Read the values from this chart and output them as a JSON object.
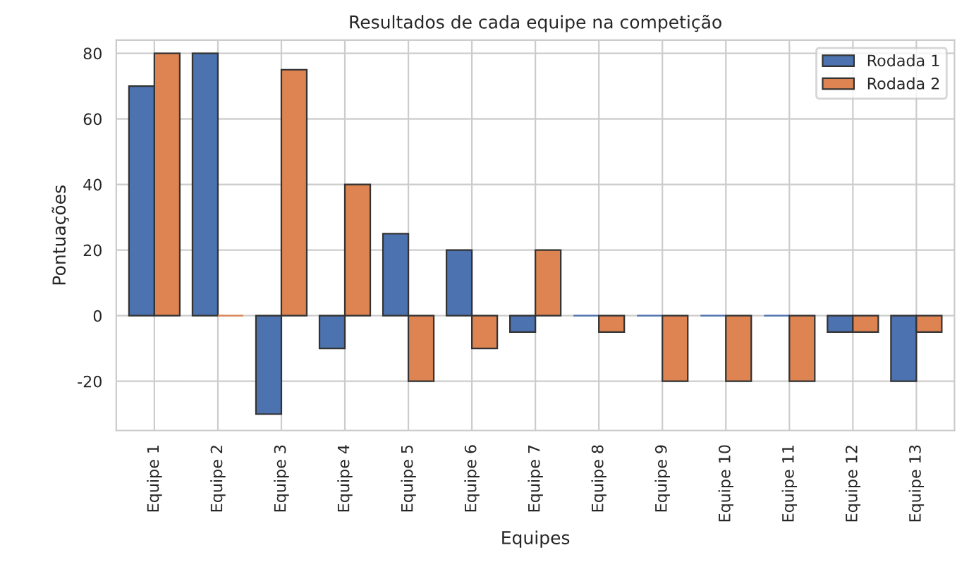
{
  "chart_data": {
    "type": "bar",
    "title": "Resultados de cada equipe na competição",
    "xlabel": "Equipes",
    "ylabel": "Pontuações",
    "categories": [
      "Equipe 1",
      "Equipe 2",
      "Equipe 3",
      "Equipe 4",
      "Equipe 5",
      "Equipe 6",
      "Equipe 7",
      "Equipe 8",
      "Equipe 9",
      "Equipe 10",
      "Equipe 11",
      "Equipe 12",
      "Equipe 13"
    ],
    "series": [
      {
        "name": "Rodada 1",
        "color": "#4c72b0",
        "values": [
          70,
          80,
          -30,
          -10,
          25,
          20,
          -5,
          0,
          0,
          0,
          0,
          -5,
          -20
        ]
      },
      {
        "name": "Rodada 2",
        "color": "#dd8452",
        "values": [
          80,
          0,
          75,
          40,
          -20,
          -10,
          20,
          -5,
          -20,
          -20,
          -20,
          -5,
          -5
        ]
      }
    ],
    "ylim": [
      -35,
      84
    ],
    "yticks": [
      -20,
      0,
      20,
      40,
      60,
      80
    ],
    "grid": true,
    "legend": "top right"
  }
}
